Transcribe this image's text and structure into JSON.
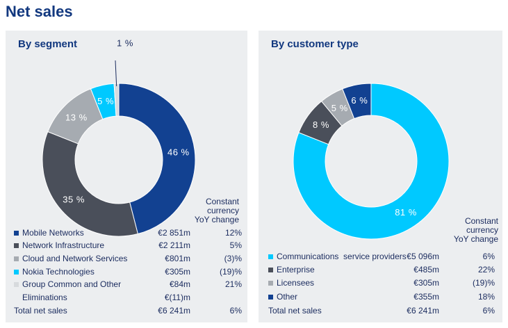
{
  "page_title": "Net sales",
  "colors": {
    "mobile_networks": "#124191",
    "network_infrastructure": "#4a4f5a",
    "cloud_network_services": "#a6abb1",
    "nokia_technologies": "#00c9ff",
    "group_common": "#d7dadd",
    "csp": "#00c9ff",
    "enterprise": "#4a4f5a",
    "licensees": "#a6abb1",
    "other": "#124191"
  },
  "left_panel": {
    "title": "By segment",
    "col_head": [
      "Constant",
      "currency",
      "YoY change"
    ],
    "rows": [
      {
        "label": "Mobile Networks",
        "value": "€2 851m",
        "change": "12%"
      },
      {
        "label": "Network Infrastructure",
        "value": "€2 211m",
        "change": "5%"
      },
      {
        "label": "Cloud and Network Services",
        "value": "€801m",
        "change": "(3)%"
      },
      {
        "label": "Nokia Technologies",
        "value": "€305m",
        "change": "(19)%"
      },
      {
        "label": "Group Common and Other",
        "value": "€84m",
        "change": "21%"
      }
    ],
    "eliminations": {
      "label": "Eliminations",
      "value": "€(11)m",
      "change": ""
    },
    "total": {
      "label": "Total net sales",
      "value": "€6 241m",
      "change": "6%"
    }
  },
  "right_panel": {
    "title": "By customer type",
    "col_head": [
      "Constant",
      "currency",
      "YoY change"
    ],
    "rows": [
      {
        "label": "Communications  service providers",
        "value": "€5 096m",
        "change": "6%"
      },
      {
        "label": "Enterprise",
        "value": "€485m",
        "change": "22%"
      },
      {
        "label": "Licensees",
        "value": "€305m",
        "change": "(19)%"
      },
      {
        "label": "Other",
        "value": "€355m",
        "change": "18%"
      }
    ],
    "total": {
      "label": "Total net sales",
      "value": "€6 241m",
      "change": "6%"
    }
  },
  "chart_data": [
    {
      "type": "pie",
      "title": "By segment",
      "categories": [
        "Mobile Networks",
        "Network Infrastructure",
        "Cloud and Network Services",
        "Nokia Technologies",
        "Group Common and Other"
      ],
      "values": [
        46,
        35,
        13,
        5,
        1
      ],
      "labels": [
        "46 %",
        "35 %",
        "13 %",
        "5 %",
        "1 %"
      ],
      "color_keys": [
        "mobile_networks",
        "network_infrastructure",
        "cloud_network_services",
        "nokia_technologies",
        "group_common"
      ]
    },
    {
      "type": "pie",
      "title": "By customer type",
      "categories": [
        "Communications service providers",
        "Enterprise",
        "Licensees",
        "Other"
      ],
      "values": [
        81,
        8,
        5,
        6
      ],
      "labels": [
        "81 %",
        "8 %",
        "5 %",
        "6 %"
      ],
      "color_keys": [
        "csp",
        "enterprise",
        "licensees",
        "other"
      ]
    }
  ]
}
